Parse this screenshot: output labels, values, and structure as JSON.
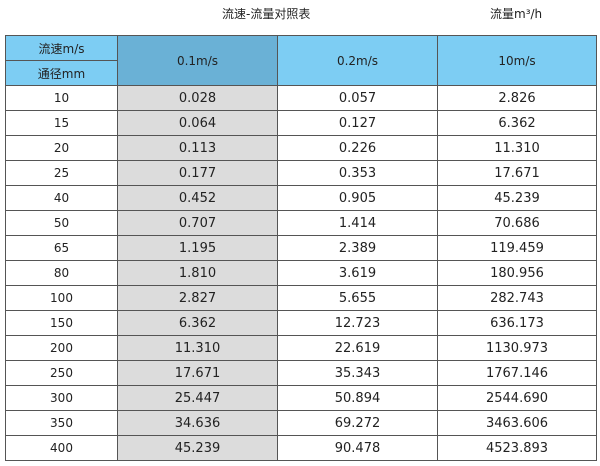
{
  "title": "流速-流量对照表",
  "unit": "流量m³/h",
  "header": {
    "speed_label": "流速m/s",
    "diameter_label": "通径mm",
    "columns": [
      "0.1m/s",
      "0.2m/s",
      "10m/s"
    ]
  },
  "colors": {
    "header": "#7dcdf3",
    "highlight_header": "#6ab1d6",
    "highlight_column": "#dcdcdc"
  },
  "rows": [
    [
      "10",
      "0.028",
      "0.057",
      "2.826"
    ],
    [
      "15",
      "0.064",
      "0.127",
      "6.362"
    ],
    [
      "20",
      "0.113",
      "0.226",
      "11.310"
    ],
    [
      "25",
      "0.177",
      "0.353",
      "17.671"
    ],
    [
      "40",
      "0.452",
      "0.905",
      "45.239"
    ],
    [
      "50",
      "0.707",
      "1.414",
      "70.686"
    ],
    [
      "65",
      "1.195",
      "2.389",
      "119.459"
    ],
    [
      "80",
      "1.810",
      "3.619",
      "180.956"
    ],
    [
      "100",
      "2.827",
      "5.655",
      "282.743"
    ],
    [
      "150",
      "6.362",
      "12.723",
      "636.173"
    ],
    [
      "200",
      "11.310",
      "22.619",
      "1130.973"
    ],
    [
      "250",
      "17.671",
      "35.343",
      "1767.146"
    ],
    [
      "300",
      "25.447",
      "50.894",
      "2544.690"
    ],
    [
      "350",
      "34.636",
      "69.272",
      "3463.606"
    ],
    [
      "400",
      "45.239",
      "90.478",
      "4523.893"
    ]
  ]
}
